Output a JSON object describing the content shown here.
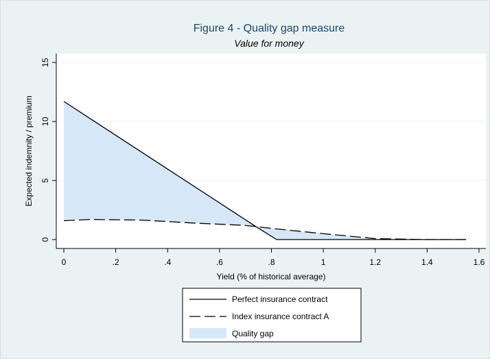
{
  "chart_data": {
    "type": "area",
    "title": "Figure 4 - Quality gap measure",
    "subtitle": "Value for money",
    "xlabel": "Yield (% of historical average)",
    "ylabel": "Expected indemnity / premium",
    "xlim": [
      0,
      1.6
    ],
    "ylim": [
      0,
      15
    ],
    "x_ticks": [
      "0",
      ".2",
      ".4",
      ".6",
      ".8",
      "1",
      "1.2",
      "1.4",
      "1.6"
    ],
    "x_tick_values": [
      0,
      0.2,
      0.4,
      0.6,
      0.8,
      1.0,
      1.2,
      1.4,
      1.6
    ],
    "y_ticks": [
      "0",
      "5",
      "10",
      "15"
    ],
    "y_tick_values": [
      0,
      5,
      10,
      15
    ],
    "grid": "horizontal",
    "legend_position": "bottom",
    "series": [
      {
        "name": "Perfect insurance contract",
        "style": "solid",
        "color": "#000000",
        "x": [
          0,
          0.74,
          0.82,
          1.0,
          1.2,
          1.4,
          1.55
        ],
        "y": [
          11.7,
          1.1,
          0,
          0,
          0,
          0,
          0
        ]
      },
      {
        "name": "Index insurance contract A",
        "style": "dashed",
        "color": "#000000",
        "x": [
          0,
          0.1,
          0.3,
          0.5,
          0.7,
          0.74,
          0.82,
          1.0,
          1.2,
          1.4,
          1.55
        ],
        "y": [
          1.6,
          1.7,
          1.65,
          1.4,
          1.2,
          1.1,
          0.9,
          0.5,
          0.08,
          0,
          0
        ]
      },
      {
        "name": "Quality gap",
        "type": "fill",
        "color": "#d6e8f7"
      }
    ]
  }
}
